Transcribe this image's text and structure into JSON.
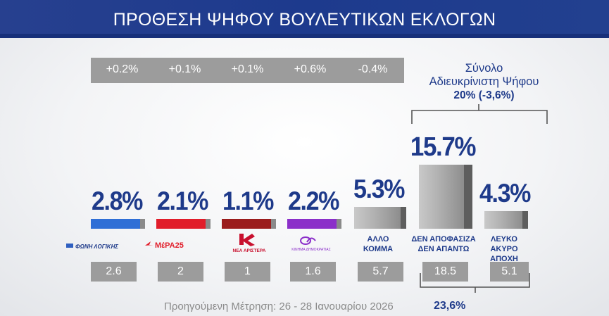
{
  "header": {
    "title": "ΠΡΟΘΕΣΗ ΨΗΦΟΥ ΒΟΥΛΕΥΤΙΚΩΝ ΕΚΛΟΓΩΝ"
  },
  "summary": {
    "label_line1": "Σύνολο",
    "label_line2": "Αδιευκρίνιστη  Ψήφου",
    "value": "20% (-3,6%)"
  },
  "logos": {
    "foni": "ΦΩΝΗ ΛΟΓΙΚΗΣ",
    "mera": "ΜέΡΑ25",
    "nea": "ΝΕΑ ΑΡΙΣΤΕΡΑ",
    "kd": "ΚΙΝΗΜΑ ΔΗΜΟΚΡΑΤΙΑΣ"
  },
  "chart_data": {
    "type": "bar",
    "title": "ΠΡΟΘΕΣΗ ΨΗΦΟΥ ΒΟΥΛΕΥΤΙΚΩΝ ΕΚΛΟΓΩΝ",
    "categories": [
      "ΦΩΝΗ ΛΟΓΙΚΗΣ",
      "ΜέΡΑ25",
      "ΝΕΑ ΑΡΙΣΤΕΡΑ",
      "ΚΙΝΗΜΑ ΔΗΜΟΚΡΑΤΙΑΣ",
      "ΑΛΛΟ ΚΟΜΜΑ",
      "ΔΕΝ ΑΠΟΦΑΣΙΖΑ ΔΕΝ ΑΠΑΝΤΩ",
      "ΛΕΥΚΟ ΑΚΥΡΟ ΑΠΟΧΗ"
    ],
    "label_lines": [
      [],
      [],
      [],
      [],
      [
        "ΑΛΛΟ",
        "ΚΟΜΜΑ"
      ],
      [
        "ΔΕΝ ΑΠΟΦΑΣΙΖΑ",
        "ΔΕΝ ΑΠΑΝΤΩ"
      ],
      [
        "ΛΕΥΚΟ",
        "ΑΚΥΡΟ",
        "ΑΠΟΧΗ"
      ]
    ],
    "values": [
      2.8,
      2.1,
      1.1,
      2.2,
      5.3,
      15.7,
      4.3
    ],
    "value_labels": [
      "2.8%",
      "2.1%",
      "1.1%",
      "2.2%",
      "5.3%",
      "15.7%",
      "4.3%"
    ],
    "changes": [
      "+0.2%",
      "+0.1%",
      "+0.1%",
      "+0.6%",
      "-0.4%"
    ],
    "previous": [
      "2.6",
      "2",
      "1",
      "1.6",
      "5.7",
      "18.5",
      "5.1"
    ],
    "previous_total": "23,6%",
    "previous_label": "Προηγούμενη Μέτρηση: 26 - 28 Ιανουαρίου 2026",
    "colors": [
      "#2f6fd6",
      "#e11d2a",
      "#9b1c1c",
      "#8b2fc9",
      "#9a9a9a",
      "#9a9a9a",
      "#9a9a9a"
    ]
  }
}
